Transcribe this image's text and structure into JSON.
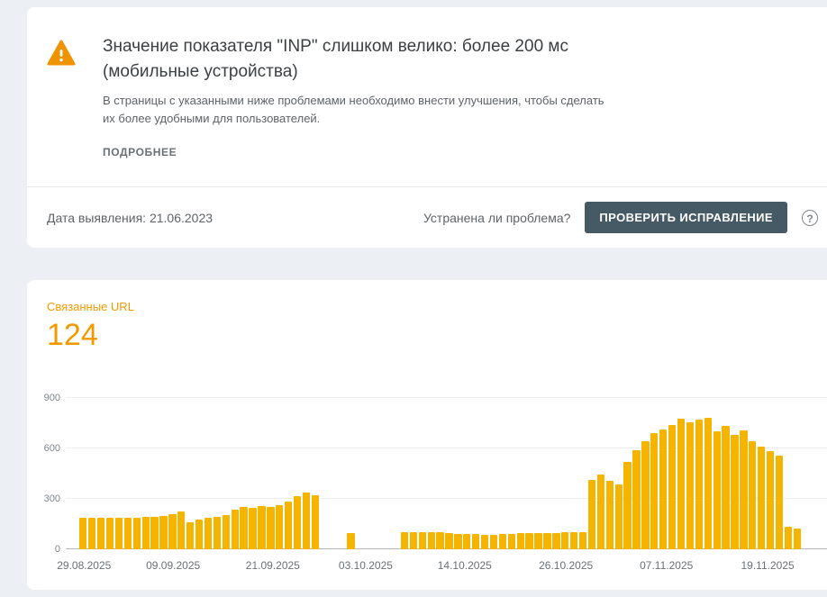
{
  "colors": {
    "bg": "#ecf0f5",
    "accent-orange": "#f29900",
    "warning": "#f09300",
    "bar": "#f4b400",
    "button-bg": "#455a64"
  },
  "alert": {
    "title": "Значение показателя \"INP\" слишком велико: более 200 мс (мобильные устройства)",
    "description": "В страницы с указанными ниже проблемами необходимо внести улучшения, чтобы сделать их более удобными для пользователей.",
    "details_link": "ПОДРОБНЕЕ",
    "warning_icon": "warning-triangle"
  },
  "status_row": {
    "detected_text": "Дата выявления: 21.06.2023",
    "fixed_question": "Устранена ли проблема?",
    "validate_button_label": "ПРОВЕРИТЬ ИСПРАВЛЕНИЕ",
    "help_icon": "question-circle",
    "help_glyph": "?"
  },
  "related": {
    "label": "Связанные URL",
    "count": "124"
  },
  "chart_data": {
    "type": "bar",
    "title": "Связанные URL",
    "xlabel": "",
    "ylabel": "",
    "ylim": [
      0,
      900
    ],
    "yticks": [
      0,
      300,
      600,
      900
    ],
    "grid": true,
    "legend": false,
    "bar_color": "#f4b400",
    "x_tick_labels": [
      "29.08.2025",
      "09.09.2025",
      "21.09.2025",
      "03.10.2025",
      "14.10.2025",
      "26.10.2025",
      "07.11.2025",
      "19.11.2025"
    ],
    "x_tick_positions_pct": [
      2.4,
      14.1,
      27.2,
      39.4,
      52.4,
      65.7,
      78.9,
      92.2
    ],
    "values": [
      185,
      185,
      185,
      185,
      185,
      185,
      190,
      195,
      195,
      200,
      210,
      225,
      160,
      175,
      190,
      195,
      205,
      235,
      250,
      245,
      255,
      250,
      265,
      285,
      315,
      335,
      320,
      null,
      null,
      null,
      95,
      null,
      null,
      null,
      null,
      null,
      100,
      100,
      100,
      100,
      100,
      95,
      90,
      90,
      90,
      85,
      85,
      90,
      90,
      95,
      95,
      95,
      95,
      95,
      100,
      100,
      100,
      415,
      445,
      405,
      385,
      520,
      590,
      645,
      690,
      715,
      740,
      775,
      755,
      770,
      780,
      700,
      735,
      680,
      705,
      645,
      610,
      585,
      555,
      135,
      125
    ]
  }
}
